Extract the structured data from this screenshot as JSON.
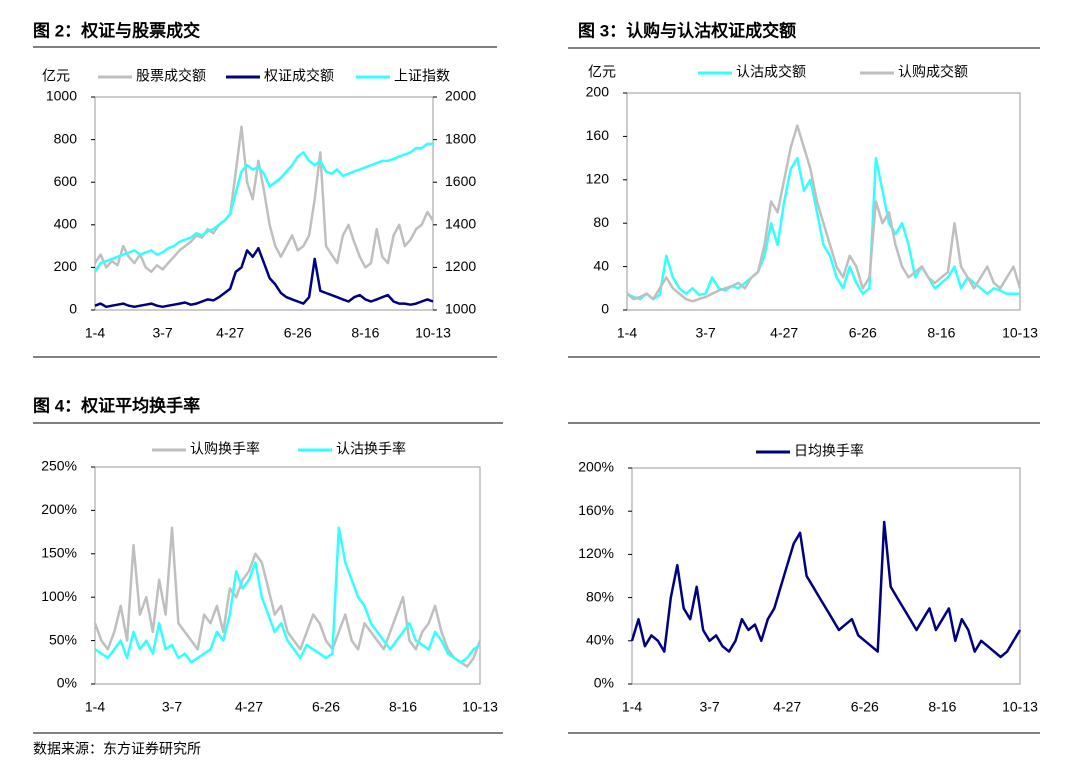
{
  "chart_data": [
    {
      "type": "line",
      "title": "图 2：权证与股票成交",
      "y_label": "亿元",
      "legend": "top",
      "categories": [
        "1-4",
        null,
        null,
        null,
        null,
        null,
        null,
        null,
        null,
        null,
        null,
        null,
        "3-7",
        null,
        null,
        null,
        null,
        null,
        null,
        null,
        null,
        null,
        null,
        null,
        "4-27",
        null,
        null,
        null,
        null,
        null,
        null,
        null,
        null,
        null,
        null,
        null,
        "6-26",
        null,
        null,
        null,
        null,
        null,
        null,
        null,
        null,
        null,
        null,
        null,
        "8-16",
        null,
        null,
        null,
        null,
        null,
        null,
        null,
        null,
        null,
        null,
        null,
        "10-13"
      ],
      "ylim": [
        0,
        1000
      ],
      "yticks": [
        0,
        200,
        400,
        600,
        800,
        1000
      ],
      "y2lim": [
        1000,
        2000
      ],
      "y2ticks": [
        1000,
        1200,
        1400,
        1600,
        1800,
        2000
      ],
      "series": [
        {
          "name": "股票成交额",
          "color": "#bfbfbf",
          "values": [
            220,
            260,
            200,
            230,
            210,
            300,
            250,
            220,
            260,
            200,
            180,
            210,
            190,
            220,
            250,
            280,
            300,
            320,
            350,
            340,
            380,
            360,
            400,
            420,
            450,
            650,
            860,
            600,
            520,
            700,
            560,
            400,
            300,
            250,
            300,
            350,
            280,
            300,
            350,
            520,
            740,
            300,
            260,
            220,
            350,
            400,
            320,
            250,
            200,
            220,
            380,
            250,
            220,
            350,
            400,
            300,
            330,
            380,
            400,
            460,
            420
          ]
        },
        {
          "name": "权证成交额",
          "color": "#000080",
          "values": [
            20,
            30,
            15,
            20,
            25,
            30,
            20,
            15,
            20,
            25,
            30,
            20,
            15,
            20,
            25,
            30,
            35,
            25,
            30,
            40,
            50,
            45,
            60,
            80,
            100,
            180,
            200,
            280,
            250,
            290,
            220,
            150,
            120,
            80,
            60,
            50,
            40,
            30,
            60,
            240,
            90,
            80,
            70,
            60,
            50,
            40,
            60,
            70,
            50,
            40,
            50,
            60,
            70,
            40,
            30,
            30,
            25,
            30,
            40,
            50,
            40
          ]
        },
        {
          "name": "上证指数",
          "color": "#33ffff",
          "axis": "y2",
          "values": [
            1180,
            1220,
            1230,
            1240,
            1250,
            1260,
            1270,
            1280,
            1260,
            1270,
            1280,
            1260,
            1270,
            1290,
            1300,
            1320,
            1330,
            1340,
            1360,
            1350,
            1370,
            1380,
            1400,
            1420,
            1450,
            1550,
            1650,
            1680,
            1660,
            1670,
            1640,
            1580,
            1600,
            1620,
            1650,
            1680,
            1720,
            1740,
            1700,
            1680,
            1700,
            1650,
            1640,
            1660,
            1630,
            1640,
            1650,
            1660,
            1670,
            1680,
            1690,
            1700,
            1700,
            1710,
            1720,
            1730,
            1740,
            1760,
            1760,
            1780,
            1780
          ]
        }
      ]
    },
    {
      "type": "line",
      "title": "图 3：认购与认沽权证成交额",
      "y_label": "亿元",
      "legend": "top",
      "categories": [
        "1-4",
        null,
        null,
        null,
        null,
        null,
        null,
        null,
        null,
        null,
        null,
        null,
        "3-7",
        null,
        null,
        null,
        null,
        null,
        null,
        null,
        null,
        null,
        null,
        null,
        "4-27",
        null,
        null,
        null,
        null,
        null,
        null,
        null,
        null,
        null,
        null,
        null,
        "6-26",
        null,
        null,
        null,
        null,
        null,
        null,
        null,
        null,
        null,
        null,
        null,
        "8-16",
        null,
        null,
        null,
        null,
        null,
        null,
        null,
        null,
        null,
        null,
        null,
        "10-13"
      ],
      "ylim": [
        0,
        200
      ],
      "yticks": [
        0,
        40,
        80,
        120,
        160,
        200
      ],
      "series": [
        {
          "name": "认沽成交额",
          "color": "#33ffff",
          "values": [
            15,
            12,
            10,
            15,
            10,
            14,
            50,
            30,
            20,
            15,
            20,
            14,
            15,
            30,
            20,
            18,
            22,
            20,
            25,
            30,
            35,
            50,
            80,
            60,
            100,
            130,
            140,
            110,
            120,
            90,
            60,
            50,
            30,
            20,
            40,
            25,
            15,
            20,
            140,
            110,
            80,
            70,
            80,
            60,
            30,
            40,
            30,
            20,
            25,
            30,
            40,
            20,
            30,
            25,
            20,
            15,
            20,
            18,
            15,
            15,
            15
          ]
        },
        {
          "name": "认购成交额",
          "color": "#bfbfbf",
          "values": [
            15,
            10,
            12,
            15,
            10,
            20,
            30,
            20,
            15,
            10,
            8,
            10,
            12,
            15,
            18,
            20,
            22,
            25,
            20,
            30,
            35,
            60,
            100,
            90,
            120,
            150,
            170,
            150,
            130,
            100,
            80,
            60,
            40,
            30,
            50,
            40,
            20,
            30,
            100,
            80,
            90,
            60,
            40,
            30,
            35,
            40,
            30,
            25,
            30,
            35,
            80,
            40,
            30,
            20,
            30,
            40,
            25,
            20,
            30,
            40,
            20
          ]
        }
      ]
    },
    {
      "type": "line",
      "title": "图 4：权证平均换手率",
      "legend": "top",
      "categories": [
        "1-4",
        null,
        null,
        null,
        null,
        null,
        null,
        null,
        null,
        null,
        null,
        null,
        "3-7",
        null,
        null,
        null,
        null,
        null,
        null,
        null,
        null,
        null,
        null,
        null,
        "4-27",
        null,
        null,
        null,
        null,
        null,
        null,
        null,
        null,
        null,
        null,
        null,
        "6-26",
        null,
        null,
        null,
        null,
        null,
        null,
        null,
        null,
        null,
        null,
        null,
        "8-16",
        null,
        null,
        null,
        null,
        null,
        null,
        null,
        null,
        null,
        null,
        null,
        "10-13"
      ],
      "ylim": [
        0,
        250
      ],
      "yticks": [
        {
          "value": 0,
          "label": "0%"
        },
        {
          "value": 50,
          "label": "50%"
        },
        {
          "value": 100,
          "label": "100%"
        },
        {
          "value": 150,
          "label": "150%"
        },
        {
          "value": 200,
          "label": "200%"
        },
        {
          "value": 250,
          "label": "250%"
        }
      ],
      "series": [
        {
          "name": "认购换手率",
          "color": "#bfbfbf",
          "values": [
            70,
            50,
            40,
            60,
            90,
            50,
            160,
            80,
            100,
            60,
            120,
            80,
            180,
            70,
            60,
            50,
            40,
            80,
            70,
            90,
            60,
            110,
            100,
            120,
            130,
            150,
            140,
            110,
            80,
            90,
            60,
            50,
            40,
            60,
            80,
            70,
            50,
            40,
            60,
            80,
            50,
            40,
            70,
            60,
            50,
            40,
            60,
            80,
            100,
            50,
            40,
            60,
            70,
            90,
            60,
            40,
            30,
            25,
            20,
            30,
            50
          ]
        },
        {
          "name": "认沽换手率",
          "color": "#33ffff",
          "values": [
            40,
            35,
            30,
            40,
            50,
            30,
            60,
            40,
            50,
            35,
            70,
            40,
            45,
            30,
            35,
            25,
            30,
            35,
            40,
            60,
            50,
            80,
            130,
            110,
            120,
            140,
            100,
            80,
            60,
            70,
            50,
            40,
            30,
            45,
            40,
            35,
            30,
            35,
            180,
            140,
            120,
            100,
            90,
            70,
            60,
            50,
            40,
            50,
            60,
            70,
            50,
            45,
            40,
            60,
            50,
            35,
            30,
            25,
            30,
            40,
            45
          ]
        }
      ]
    },
    {
      "type": "line",
      "legend": "top",
      "categories": [
        "1-4",
        null,
        null,
        null,
        null,
        null,
        null,
        null,
        null,
        null,
        null,
        null,
        "3-7",
        null,
        null,
        null,
        null,
        null,
        null,
        null,
        null,
        null,
        null,
        null,
        "4-27",
        null,
        null,
        null,
        null,
        null,
        null,
        null,
        null,
        null,
        null,
        null,
        "6-26",
        null,
        null,
        null,
        null,
        null,
        null,
        null,
        null,
        null,
        null,
        null,
        "8-16",
        null,
        null,
        null,
        null,
        null,
        null,
        null,
        null,
        null,
        null,
        null,
        "10-13"
      ],
      "ylim": [
        0,
        200
      ],
      "yticks": [
        {
          "value": 0,
          "label": "0%"
        },
        {
          "value": 40,
          "label": "40%"
        },
        {
          "value": 80,
          "label": "80%"
        },
        {
          "value": 120,
          "label": "120%"
        },
        {
          "value": 160,
          "label": "160%"
        },
        {
          "value": 200,
          "label": "200%"
        }
      ],
      "series": [
        {
          "name": "日均换手率",
          "color": "#000080",
          "values": [
            40,
            60,
            35,
            45,
            40,
            30,
            80,
            110,
            70,
            60,
            90,
            50,
            40,
            45,
            35,
            30,
            40,
            60,
            50,
            55,
            40,
            60,
            70,
            90,
            110,
            130,
            140,
            100,
            90,
            80,
            70,
            60,
            50,
            55,
            60,
            45,
            40,
            35,
            30,
            150,
            90,
            80,
            70,
            60,
            50,
            60,
            70,
            50,
            60,
            70,
            40,
            60,
            50,
            30,
            40,
            35,
            30,
            25,
            30,
            40,
            50
          ]
        }
      ]
    }
  ],
  "source": "数据来源：东方证券研究所"
}
